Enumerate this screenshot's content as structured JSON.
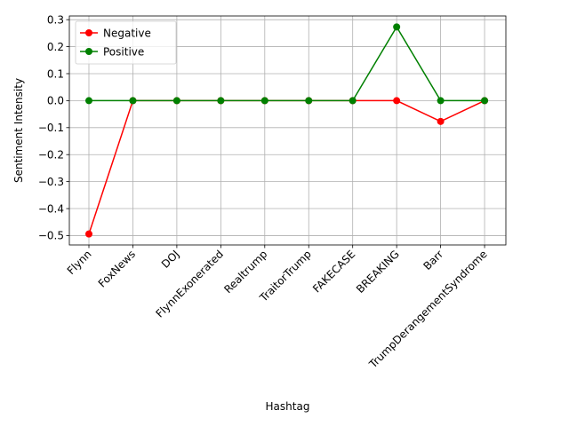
{
  "chart_data": {
    "type": "line",
    "categories": [
      "Flynn",
      "FoxNews",
      "DOJ",
      "FlynnExonerated",
      "Realtrump",
      "TraitorTrump",
      "FAKECASE",
      "BREAKING",
      "Barr",
      "TrumpDerangementSyndrome"
    ],
    "series": [
      {
        "name": "Negative",
        "color": "#ff0000",
        "values": [
          -0.494,
          0.0,
          0.0,
          0.0,
          0.0,
          0.0,
          0.0,
          0.0,
          -0.077,
          0.0
        ]
      },
      {
        "name": "Positive",
        "color": "#008000",
        "values": [
          0.0,
          0.0,
          0.0,
          0.0,
          0.0,
          0.0,
          0.0,
          0.273,
          0.0,
          0.0
        ]
      }
    ],
    "xlabel": "Hashtag",
    "ylabel": "Sentiment Intensity",
    "ylim": [
      -0.5347,
      0.3137
    ],
    "yticks": [
      "-0.5",
      "-0.4",
      "-0.3",
      "-0.2",
      "-0.1",
      "0.0",
      "0.1",
      "0.2",
      "0.3"
    ],
    "ytick_values": [
      -0.5,
      -0.4,
      -0.3,
      -0.2,
      -0.1,
      0.0,
      0.1,
      0.2,
      0.3
    ],
    "grid": true,
    "legend": "top-left"
  }
}
